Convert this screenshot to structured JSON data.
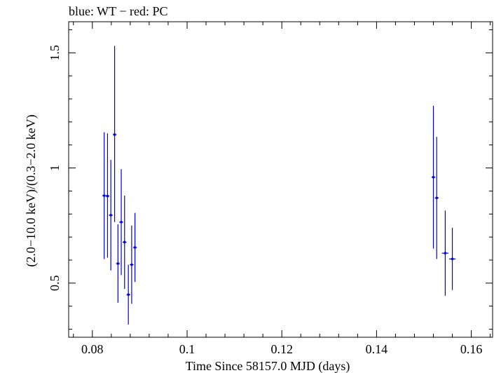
{
  "chart_data": {
    "type": "scatter",
    "title": "blue: WT − red: PC",
    "xlabel": "Time Since 58157.0 MJD (days)",
    "ylabel": "(2.0−10.0 keV)/(0.3−2.0 keV)",
    "xlim": [
      0.075,
      0.1645
    ],
    "ylim": [
      0.265,
      1.635
    ],
    "xticks": [
      0.08,
      0.1,
      0.12,
      0.14,
      0.16
    ],
    "xtick_labels": [
      "0.08",
      "0.1",
      "0.12",
      "0.14",
      "0.16"
    ],
    "yticks": [
      0.5,
      1.0,
      1.5
    ],
    "ytick_labels": [
      "0.5",
      "1",
      "1.5"
    ],
    "grid": false,
    "series": [
      {
        "name": "WT",
        "color": "#0000dd",
        "points": [
          {
            "x": 0.0825,
            "y": 0.88,
            "xerr": 0.0004,
            "ylo": 0.605,
            "yhi": 1.155
          },
          {
            "x": 0.0832,
            "y": 0.878,
            "xerr": 0.0004,
            "ylo": 0.61,
            "yhi": 1.15
          },
          {
            "x": 0.0839,
            "y": 0.795,
            "xerr": 0.0004,
            "ylo": 0.555,
            "yhi": 1.035
          },
          {
            "x": 0.0847,
            "y": 1.145,
            "xerr": 0.0004,
            "ylo": 0.765,
            "yhi": 1.53
          },
          {
            "x": 0.0854,
            "y": 0.585,
            "xerr": 0.0004,
            "ylo": 0.415,
            "yhi": 0.755
          },
          {
            "x": 0.0861,
            "y": 0.765,
            "xerr": 0.0004,
            "ylo": 0.535,
            "yhi": 0.995
          },
          {
            "x": 0.0868,
            "y": 0.678,
            "xerr": 0.0004,
            "ylo": 0.475,
            "yhi": 0.88
          },
          {
            "x": 0.0876,
            "y": 0.45,
            "xerr": 0.0004,
            "ylo": 0.32,
            "yhi": 0.58
          },
          {
            "x": 0.0883,
            "y": 0.58,
            "xerr": 0.0004,
            "ylo": 0.41,
            "yhi": 0.75
          },
          {
            "x": 0.089,
            "y": 0.655,
            "xerr": 0.0004,
            "ylo": 0.505,
            "yhi": 0.805
          },
          {
            "x": 0.152,
            "y": 0.96,
            "xerr": 0.0004,
            "ylo": 0.65,
            "yhi": 1.27
          },
          {
            "x": 0.1527,
            "y": 0.87,
            "xerr": 0.0004,
            "ylo": 0.605,
            "yhi": 1.135
          },
          {
            "x": 0.1545,
            "y": 0.63,
            "xerr": 0.0007,
            "ylo": 0.445,
            "yhi": 0.815
          },
          {
            "x": 0.156,
            "y": 0.605,
            "xerr": 0.0007,
            "ylo": 0.47,
            "yhi": 0.74
          }
        ]
      }
    ]
  }
}
